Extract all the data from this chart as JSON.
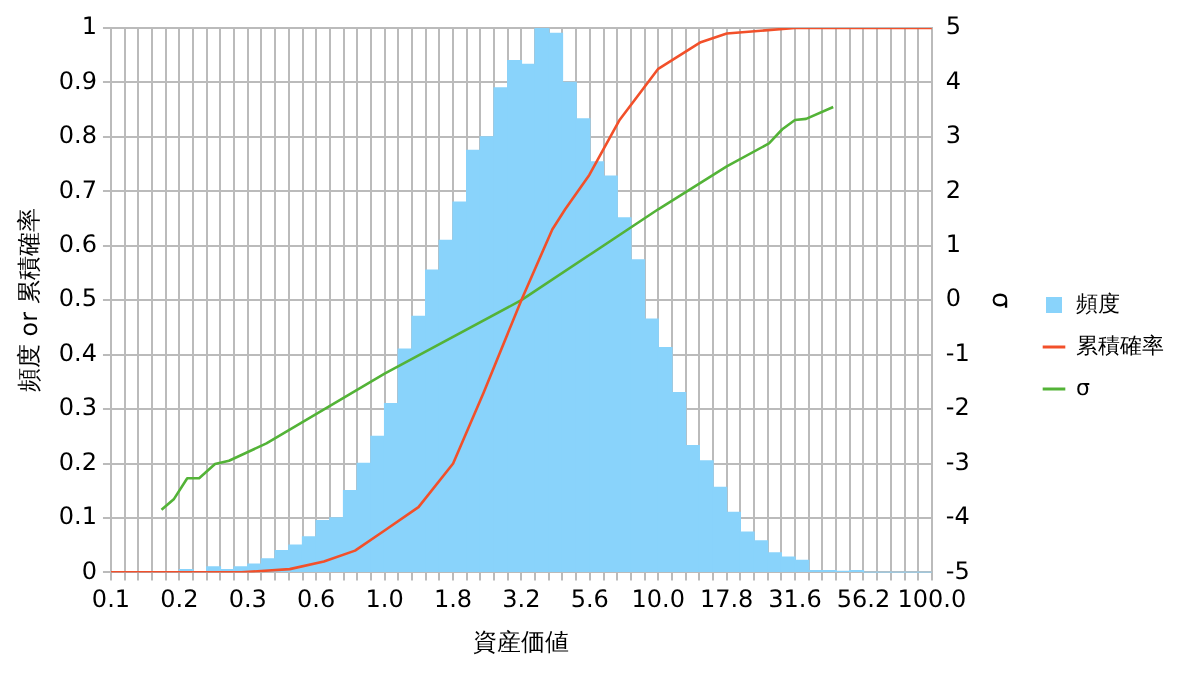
{
  "chart_data": {
    "type": "histogram",
    "xlabel": "資産価値",
    "ylabel": "頻度 or 累積確率",
    "y2label": "σ",
    "bins": [
      0.1,
      0.1122,
      0.1259,
      0.1413,
      0.1585,
      0.1778,
      0.1995,
      0.2239,
      0.2512,
      0.2818,
      0.3162,
      0.3548,
      0.3981,
      0.4467,
      0.5012,
      0.5623,
      0.631,
      0.7079,
      0.7943,
      0.8913,
      1,
      1.122,
      1.259,
      1.413,
      1.585,
      1.778,
      1.995,
      2.239,
      2.512,
      2.818,
      3.162,
      3.548,
      3.981,
      4.467,
      5.012,
      5.623,
      6.31,
      7.079,
      7.943,
      8.913,
      10,
      11.22,
      12.59,
      14.13,
      15.85,
      17.78,
      19.95,
      22.39,
      25.12,
      28.18,
      31.62,
      35.48,
      39.81,
      44.67,
      50.12,
      56.23,
      63.1,
      70.79,
      79.43,
      89.13,
      100
    ],
    "series": [
      {
        "name": "頻度",
        "type": "histogram",
        "color": "#89d3fb",
        "values": [
          0,
          0,
          0,
          0,
          0,
          0.005,
          0,
          0.01,
          0.005,
          0.01,
          0.015,
          0.025,
          0.04,
          0.05,
          0.065,
          0.095,
          0.1,
          0.15,
          0.2,
          0.25,
          0.31,
          0.41,
          0.47,
          0.555,
          0.61,
          0.68,
          0.775,
          0.8,
          0.89,
          0.94,
          0.933,
          1,
          0.99,
          0.9,
          0.833,
          0.754,
          0.728,
          0.651,
          0.574,
          0.465,
          0.413,
          0.33,
          0.233,
          0.205,
          0.156,
          0.11,
          0.074,
          0.058,
          0.036,
          0.028,
          0.022,
          0.003,
          0.003,
          0.002,
          0.003,
          0,
          0,
          0,
          0,
          0
        ]
      },
      {
        "name": "累積確率",
        "type": "line",
        "color": "#f2502a",
        "x": [
          0.1,
          0.3,
          0.45,
          0.6,
          0.78,
          1,
          1.33,
          1.78,
          2.3,
          3.16,
          4.1,
          4.57,
          5.6,
          7.2,
          10,
          14.3,
          17.8,
          31.6,
          100
        ],
        "values": [
          0,
          0,
          0.006,
          0.02,
          0.04,
          0.077,
          0.12,
          0.2,
          0.33,
          0.5,
          0.63,
          0.667,
          0.73,
          0.83,
          0.925,
          0.974,
          0.99,
          1,
          1
        ]
      },
      {
        "name": "σ",
        "type": "line",
        "axis": "y2",
        "color": "#53b337",
        "x": [
          0.153,
          0.17,
          0.19,
          0.21,
          0.24,
          0.27,
          0.37,
          1,
          3.16,
          5.6,
          10,
          17.8,
          25.4,
          28.4,
          31.6,
          34.7,
          43.6
        ],
        "values": [
          -3.85,
          -3.65,
          -3.27,
          -3.27,
          -3.01,
          -2.95,
          -2.63,
          -1.35,
          0,
          0.83,
          1.67,
          2.46,
          2.88,
          3.14,
          3.31,
          3.33,
          3.55
        ]
      }
    ],
    "log": "x",
    "xlim": [
      0.1,
      100
    ],
    "xticks": [
      {
        "value": 0.1,
        "label": "0.1"
      },
      {
        "value": 0.1122,
        "label": null
      },
      {
        "value": 0.1259,
        "label": null
      },
      {
        "value": 0.1413,
        "label": null
      },
      {
        "value": 0.1585,
        "label": null
      },
      {
        "value": 0.1778,
        "label": "0.2"
      },
      {
        "value": 0.1995,
        "label": null
      },
      {
        "value": 0.2239,
        "label": null
      },
      {
        "value": 0.2512,
        "label": null
      },
      {
        "value": 0.2818,
        "label": null
      },
      {
        "value": 0.3162,
        "label": "0.3"
      },
      {
        "value": 0.3548,
        "label": null
      },
      {
        "value": 0.3981,
        "label": null
      },
      {
        "value": 0.4467,
        "label": null
      },
      {
        "value": 0.5012,
        "label": null
      },
      {
        "value": 0.5623,
        "label": "0.6"
      },
      {
        "value": 0.631,
        "label": null
      },
      {
        "value": 0.7079,
        "label": null
      },
      {
        "value": 0.7943,
        "label": null
      },
      {
        "value": 0.8913,
        "label": null
      },
      {
        "value": 1,
        "label": "1.0"
      },
      {
        "value": 1.122,
        "label": null
      },
      {
        "value": 1.259,
        "label": null
      },
      {
        "value": 1.413,
        "label": null
      },
      {
        "value": 1.585,
        "label": null
      },
      {
        "value": 1.778,
        "label": "1.8"
      },
      {
        "value": 1.995,
        "label": null
      },
      {
        "value": 2.239,
        "label": null
      },
      {
        "value": 2.512,
        "label": null
      },
      {
        "value": 2.818,
        "label": null
      },
      {
        "value": 3.162,
        "label": "3.2"
      },
      {
        "value": 3.548,
        "label": null
      },
      {
        "value": 3.981,
        "label": null
      },
      {
        "value": 4.467,
        "label": null
      },
      {
        "value": 5.012,
        "label": null
      },
      {
        "value": 5.623,
        "label": "5.6"
      },
      {
        "value": 6.31,
        "label": null
      },
      {
        "value": 7.079,
        "label": null
      },
      {
        "value": 7.943,
        "label": null
      },
      {
        "value": 8.913,
        "label": null
      },
      {
        "value": 10,
        "label": "10.0"
      },
      {
        "value": 11.22,
        "label": null
      },
      {
        "value": 12.59,
        "label": null
      },
      {
        "value": 14.13,
        "label": null
      },
      {
        "value": 15.85,
        "label": null
      },
      {
        "value": 17.78,
        "label": "17.8"
      },
      {
        "value": 19.95,
        "label": null
      },
      {
        "value": 22.39,
        "label": null
      },
      {
        "value": 25.12,
        "label": null
      },
      {
        "value": 28.18,
        "label": null
      },
      {
        "value": 31.62,
        "label": "31.6"
      },
      {
        "value": 35.48,
        "label": null
      },
      {
        "value": 39.81,
        "label": null
      },
      {
        "value": 44.67,
        "label": null
      },
      {
        "value": 50.12,
        "label": null
      },
      {
        "value": 56.23,
        "label": "56.2"
      },
      {
        "value": 63.1,
        "label": null
      },
      {
        "value": 70.79,
        "label": null
      },
      {
        "value": 79.43,
        "label": null
      },
      {
        "value": 89.13,
        "label": null
      },
      {
        "value": 100,
        "label": "100.0"
      }
    ],
    "ylim": [
      0,
      1
    ],
    "yticks": [
      0,
      0.1,
      0.2,
      0.3,
      0.4,
      0.5,
      0.6,
      0.7,
      0.8,
      0.9,
      1
    ],
    "y2lim": [
      -5,
      5
    ],
    "y2ticks": [
      -5,
      -4,
      -3,
      -2,
      -1,
      0,
      1,
      2,
      3,
      4,
      5
    ],
    "grid": true,
    "legend": "right",
    "marker": "none"
  }
}
